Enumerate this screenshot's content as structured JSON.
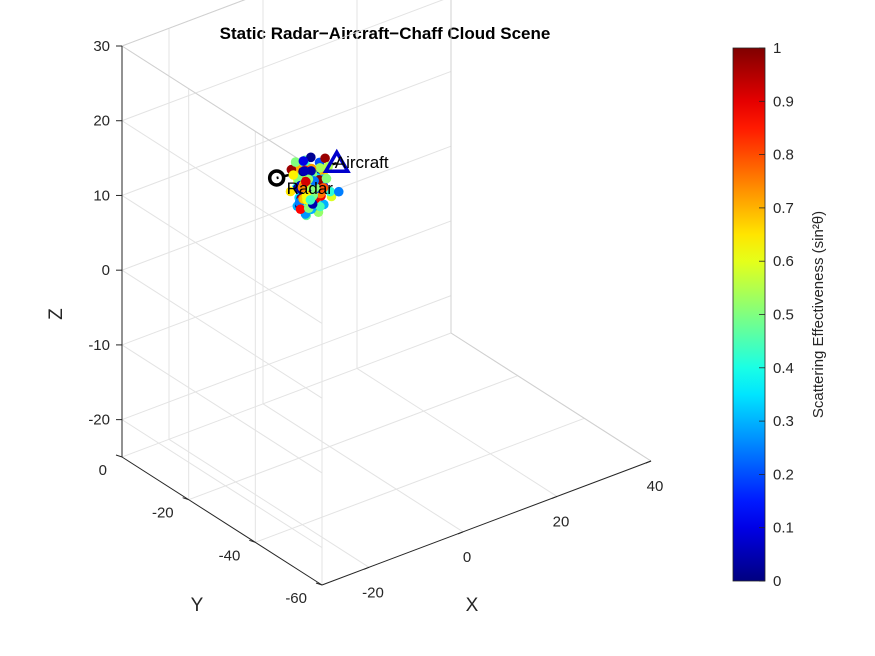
{
  "chart_data": {
    "type": "scatter3d",
    "title": "Static Radar−Aircraft−Chaff Cloud Scene",
    "xlabel": "X",
    "ylabel": "Y",
    "zlabel": "Z",
    "xlim": [
      -30,
      40
    ],
    "ylim": [
      -60,
      0
    ],
    "zlim": [
      -25,
      30
    ],
    "xticks": [
      "-20",
      "0",
      "20",
      "40"
    ],
    "yticks": [
      "-60",
      "-40",
      "-20",
      "0"
    ],
    "zticks": [
      "-20",
      "-10",
      "0",
      "10",
      "20",
      "30"
    ],
    "grid": true,
    "view": "3-D perspective",
    "colormap": "jet",
    "colorbar": {
      "label": "Scattering Effectiveness (sin²θ)",
      "limits": [
        0,
        1
      ],
      "ticks": [
        "0",
        "0.1",
        "0.2",
        "0.3",
        "0.4",
        "0.5",
        "0.6",
        "0.7",
        "0.8",
        "0.9",
        "1"
      ]
    },
    "objects": [
      {
        "label": "Aircraft",
        "marker": "triangle",
        "color": "#0000cc",
        "x": -7,
        "y": -32,
        "z": 18
      },
      {
        "label": "Radar",
        "marker": "circle",
        "color": "#000000",
        "x": 10,
        "y": 10,
        "z": 0
      }
    ],
    "line_of_sight": {
      "style": "dashed",
      "color": "#000000"
    },
    "chaff_cloud": {
      "center": [
        3,
        -10,
        6
      ],
      "count": 140,
      "value_range": [
        0,
        1
      ]
    }
  }
}
